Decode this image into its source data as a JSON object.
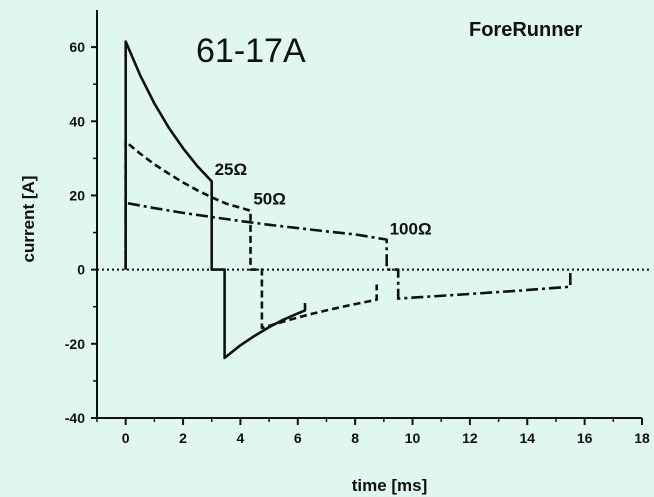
{
  "chart_data": {
    "type": "line",
    "title": "61-17A",
    "brand": "ForeRunner",
    "xlabel": "time [ms]",
    "ylabel": "current [A]",
    "xlim": [
      -1,
      18
    ],
    "ylim": [
      -40,
      70
    ],
    "x_ticks": [
      0,
      2,
      4,
      6,
      8,
      10,
      12,
      14,
      16,
      18
    ],
    "y_ticks": [
      -40,
      -20,
      0,
      20,
      40,
      60
    ],
    "grid": false,
    "zero_line": "dotted",
    "series": [
      {
        "name": "25Ω",
        "style": "solid",
        "points": [
          [
            0,
            0
          ],
          [
            0,
            61.5
          ],
          [
            0.5,
            52.5
          ],
          [
            1.0,
            44.8
          ],
          [
            1.5,
            38.3
          ],
          [
            2.0,
            32.7
          ],
          [
            2.5,
            27.9
          ],
          [
            3.0,
            23.8
          ],
          [
            3.0,
            0
          ],
          [
            3.45,
            0
          ],
          [
            3.45,
            -23.8
          ],
          [
            4.0,
            -20.4
          ],
          [
            4.5,
            -17.8
          ],
          [
            5.0,
            -15.5
          ],
          [
            5.5,
            -13.5
          ],
          [
            6.0,
            -11.8
          ],
          [
            6.25,
            -11.0
          ],
          [
            6.25,
            -9.0
          ]
        ]
      },
      {
        "name": "50Ω",
        "style": "dashed",
        "points": [
          [
            0,
            0
          ],
          [
            0,
            34.5
          ],
          [
            0.5,
            31.3
          ],
          [
            1.0,
            28.4
          ],
          [
            1.5,
            25.9
          ],
          [
            2.0,
            23.5
          ],
          [
            2.5,
            21.4
          ],
          [
            3.0,
            19.5
          ],
          [
            3.5,
            17.8
          ],
          [
            4.35,
            15.9
          ],
          [
            4.35,
            0
          ],
          [
            4.75,
            0
          ],
          [
            4.75,
            -15.7
          ],
          [
            5.5,
            -14.0
          ],
          [
            6.0,
            -12.9
          ],
          [
            6.5,
            -11.9
          ],
          [
            7.0,
            -11.0
          ],
          [
            7.5,
            -10.1
          ],
          [
            8.0,
            -9.3
          ],
          [
            8.75,
            -8.1
          ],
          [
            8.75,
            -4.0
          ]
        ]
      },
      {
        "name": "100Ω",
        "style": "dashdot",
        "points": [
          [
            0,
            0
          ],
          [
            0,
            18.0
          ],
          [
            1.0,
            16.6
          ],
          [
            2.0,
            15.3
          ],
          [
            3.0,
            14.2
          ],
          [
            4.0,
            13.1
          ],
          [
            5.0,
            12.1
          ],
          [
            6.0,
            11.2
          ],
          [
            7.0,
            10.3
          ],
          [
            8.0,
            9.5
          ],
          [
            9.1,
            8.1
          ],
          [
            9.1,
            0
          ],
          [
            9.5,
            0
          ],
          [
            9.5,
            -7.8
          ],
          [
            10.5,
            -7.3
          ],
          [
            11.5,
            -6.8
          ],
          [
            12.5,
            -6.3
          ],
          [
            13.5,
            -5.8
          ],
          [
            14.5,
            -5.2
          ],
          [
            15.5,
            -4.6
          ],
          [
            15.5,
            -0.5
          ]
        ]
      }
    ],
    "annotations": [
      {
        "text": "25Ω",
        "x": 3.1,
        "y": 25.5
      },
      {
        "text": "50Ω",
        "x": 4.45,
        "y": 17.5
      },
      {
        "text": "100Ω",
        "x": 9.2,
        "y": 9.5
      }
    ]
  }
}
